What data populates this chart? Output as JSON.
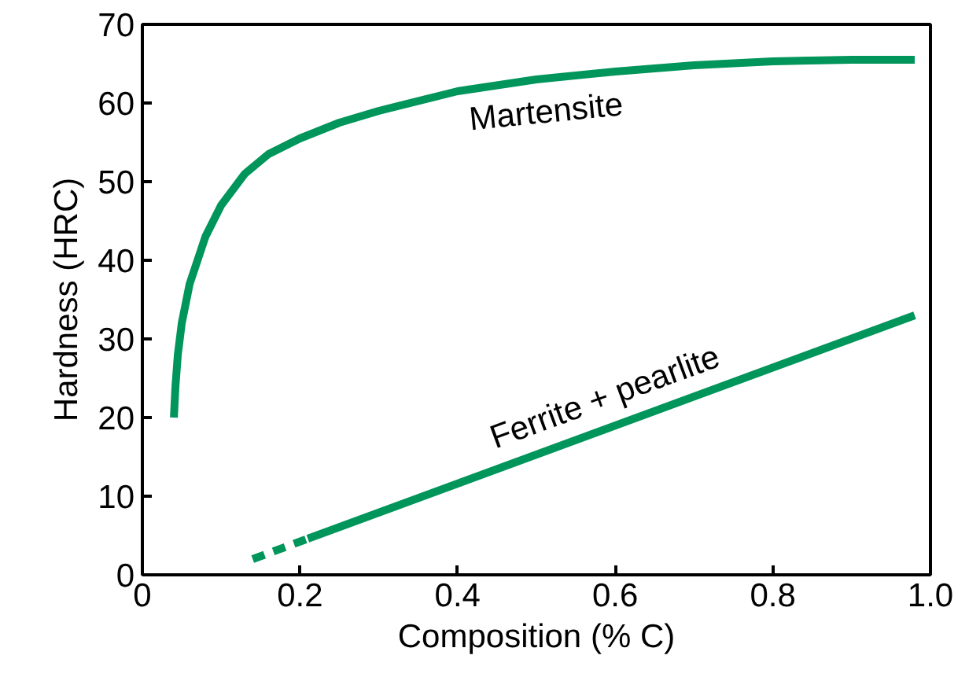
{
  "chart_data": {
    "type": "line",
    "xlabel": "Composition (% C)",
    "ylabel": "Hardness (HRC)",
    "xlim": [
      0,
      1.0
    ],
    "ylim": [
      0,
      70
    ],
    "xticks": [
      0,
      0.2,
      0.4,
      0.6,
      0.8,
      {
        "value": 1.0,
        "label": "1.0"
      }
    ],
    "yticks": [
      0,
      10,
      20,
      30,
      40,
      50,
      60,
      70
    ],
    "grid": false,
    "marker": "none",
    "series": [
      {
        "name": "Martensite",
        "color": "#00955a",
        "line_style": "solid",
        "x": [
          0.04,
          0.042,
          0.045,
          0.05,
          0.06,
          0.08,
          0.1,
          0.13,
          0.16,
          0.2,
          0.25,
          0.3,
          0.4,
          0.5,
          0.6,
          0.7,
          0.8,
          0.9,
          0.98
        ],
        "values": [
          20,
          24,
          28,
          32,
          37,
          43,
          47,
          51,
          53.5,
          55.5,
          57.5,
          59,
          61.5,
          63,
          64,
          64.8,
          65.3,
          65.5,
          65.5
        ]
      },
      {
        "name": "Ferrite + pearlite",
        "color": "#00955a",
        "line_style": "solid",
        "x": [
          0.21,
          0.98
        ],
        "values": [
          4.6,
          33
        ]
      },
      {
        "color": "#00955a",
        "line_style": "dashed",
        "x": [
          0.14,
          0.21
        ],
        "values": [
          2,
          4.6
        ]
      }
    ]
  }
}
